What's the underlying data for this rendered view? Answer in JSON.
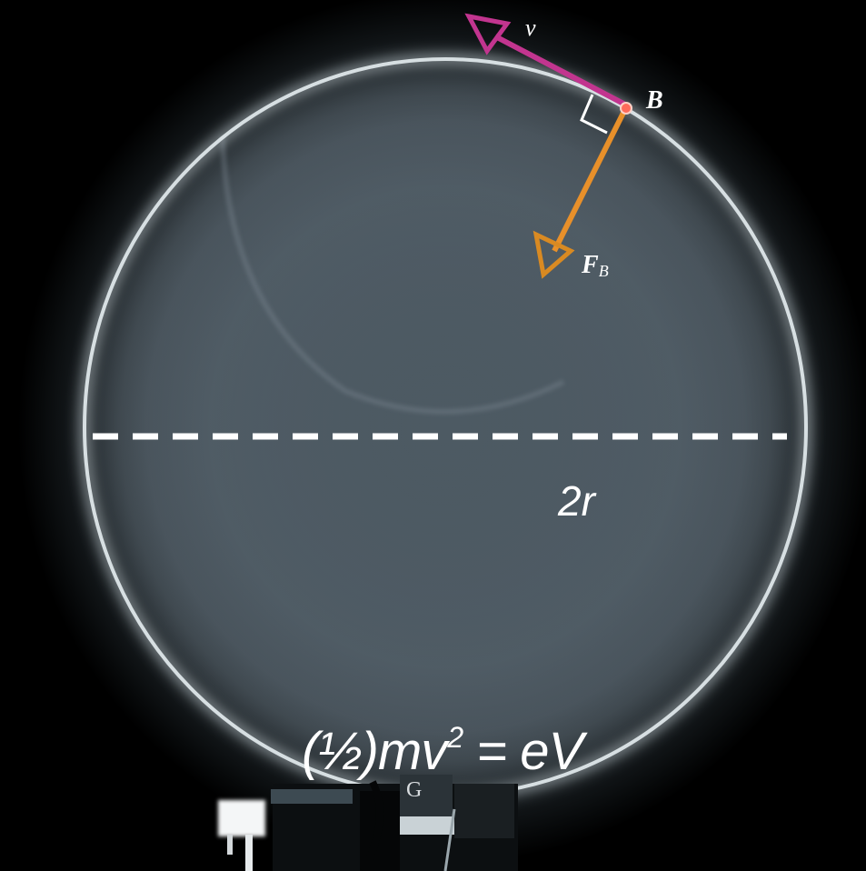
{
  "labels": {
    "velocity": "v",
    "magnetic_field": "B",
    "force_main": "F",
    "force_sub": "B",
    "diameter": "2r",
    "energy_equation_prefix": "(½)mv",
    "energy_equation_exponent": "2",
    "energy_equation_suffix": " = eV",
    "gun_label": "G"
  },
  "colors": {
    "velocity_arrow": "#c2358f",
    "force_arrow": "#e8902a",
    "beam_ring": "#e4ecef",
    "diameter_line": "#ffffff",
    "background_glow": "#4d5a63"
  }
}
